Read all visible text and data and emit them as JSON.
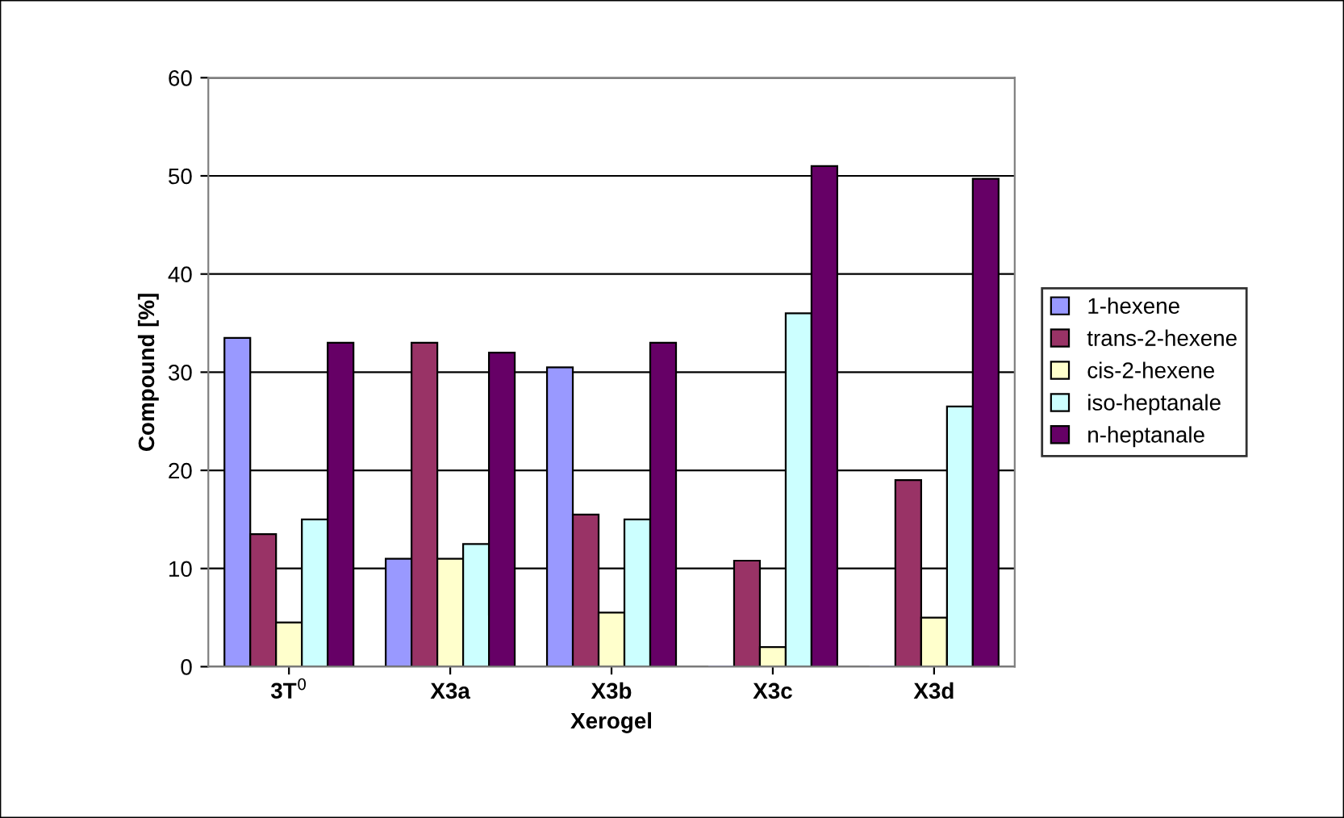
{
  "chart_data": {
    "type": "bar",
    "xlabel": "Xerogel",
    "ylabel": "Compound [%]",
    "categories": [
      "3T$^{0}$",
      "X3a",
      "X3b",
      "X3c",
      "X3d"
    ],
    "series": [
      {
        "name": "1-hexene",
        "color": "#9999ff",
        "values": [
          33.5,
          11,
          30.5,
          0,
          0
        ]
      },
      {
        "name": "trans-2-hexene",
        "color": "#993366",
        "values": [
          13.5,
          33,
          15.5,
          10.8,
          19
        ]
      },
      {
        "name": "cis-2-hexene",
        "color": "#ffffcc",
        "values": [
          4.5,
          11,
          5.5,
          2,
          5
        ]
      },
      {
        "name": "iso-heptanale",
        "color": "#ccffff",
        "values": [
          15,
          12.5,
          15,
          36,
          26.5
        ]
      },
      {
        "name": "n-heptanale",
        "color": "#660066",
        "values": [
          33,
          32,
          33,
          51,
          49.7
        ]
      }
    ],
    "ylim": [
      0,
      60
    ],
    "yticks": [
      0,
      10,
      20,
      30,
      40,
      50,
      60
    ],
    "grid": "y",
    "legend": "right"
  }
}
